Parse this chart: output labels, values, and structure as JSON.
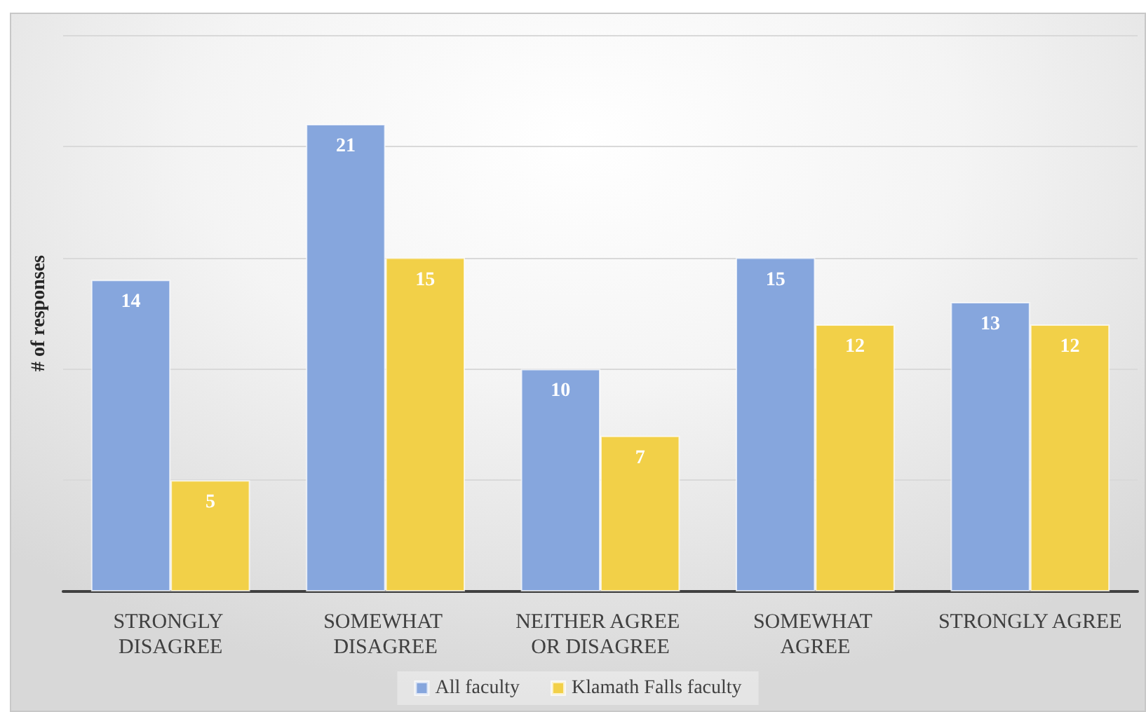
{
  "chart_data": {
    "type": "bar",
    "ylabel": "# of responses",
    "categories": [
      "STRONGLY DISAGREE",
      "SOMEWHAT DISAGREE",
      "NEITHER AGREE OR DISAGREE",
      "SOMEWHAT AGREE",
      "STRONGLY AGREE"
    ],
    "series": [
      {
        "name": "All faculty",
        "color": "#86a6dd",
        "values": [
          14,
          21,
          10,
          15,
          13
        ]
      },
      {
        "name": "Klamath Falls faculty",
        "color": "#f2d048",
        "values": [
          5,
          15,
          7,
          12,
          12
        ]
      }
    ],
    "ylim": [
      0,
      25
    ],
    "yticks": [
      0,
      5,
      10,
      15,
      20,
      25
    ],
    "tick_labels": "x",
    "grid": "y",
    "legend": "bottom",
    "data_labels": true
  }
}
